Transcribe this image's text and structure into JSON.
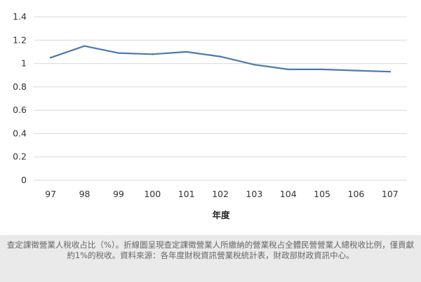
{
  "chart_data": {
    "type": "line",
    "categories": [
      "97",
      "98",
      "99",
      "100",
      "101",
      "102",
      "103",
      "104",
      "105",
      "106",
      "107"
    ],
    "series": [
      {
        "values": [
          1.05,
          1.15,
          1.09,
          1.08,
          1.1,
          1.06,
          0.99,
          0.95,
          0.95,
          0.94,
          0.93
        ]
      }
    ],
    "xlabel": "年度",
    "ylabel": "",
    "title": "",
    "ylim": [
      0,
      1.4
    ],
    "yticks": [
      0,
      0.2,
      0.4,
      0.6,
      0.8,
      1,
      1.2,
      1.4
    ],
    "ytick_labels": [
      "0",
      "0.2",
      "0.4",
      "0.6",
      "0.8",
      "1",
      "1.2",
      "1.4"
    ],
    "grid": true,
    "legend": "none",
    "line_color": "#4a7ab0",
    "grid_color": "#d9d9d9"
  },
  "caption": "查定課徵營業人稅收占比（%）。折線圖呈現查定課徵營業人所繳納的營業稅占全體民營營業人總稅收比例，僅貢獻約1%的稅收。資料來源：各年度財稅資訊營業稅統計表，財政部財政資訊中心。"
}
